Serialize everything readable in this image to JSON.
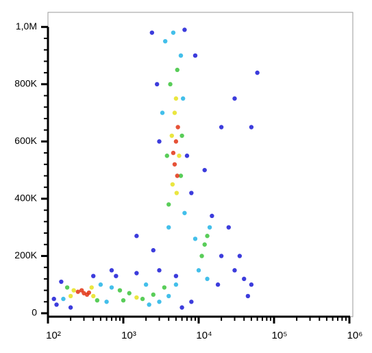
{
  "chart_data": {
    "type": "scatter",
    "log_x": true,
    "frame": true,
    "xlim": [
      100,
      1110000
    ],
    "ylim": [
      -12000,
      1051000
    ],
    "xticks": [
      {
        "value": 100,
        "label": "10²"
      },
      {
        "value": 1000,
        "label": "10³"
      },
      {
        "value": 10000,
        "label": "10⁴"
      },
      {
        "value": 100000,
        "label": "10⁵"
      },
      {
        "value": 1000000,
        "label": "10⁶"
      }
    ],
    "xminorticks": [
      200,
      300,
      400,
      500,
      600,
      700,
      800,
      900,
      2000,
      3000,
      4000,
      5000,
      6000,
      7000,
      8000,
      9000,
      20000,
      30000,
      40000,
      50000,
      60000,
      70000,
      80000,
      90000,
      200000,
      300000,
      400000,
      500000,
      600000,
      700000,
      800000,
      900000
    ],
    "yticks": [
      0,
      {
        "value": 200000,
        "label": "200K"
      },
      {
        "value": 400000,
        "label": "400K"
      },
      {
        "value": 600000,
        "label": "600K"
      },
      {
        "value": 800000,
        "label": "800K"
      },
      {
        "value": 1000000,
        "label": "1,0M"
      }
    ],
    "yminorticks": [
      40000,
      80000,
      120000,
      160000,
      240000,
      280000,
      320000,
      360000,
      440000,
      480000,
      520000,
      560000,
      640000,
      680000,
      720000,
      760000,
      840000,
      880000,
      920000,
      960000
    ],
    "series": [
      {
        "color": "#1a1ad6",
        "x": [
          130,
          120,
          150,
          800,
          1500,
          3000,
          5000,
          20000,
          30000,
          40000,
          50000,
          25000,
          15000,
          2500,
          1500,
          8000,
          12000,
          20000,
          30000,
          60000,
          50000,
          2400,
          6500,
          3000,
          7000,
          2800,
          9000,
          200,
          6000,
          8000,
          45000,
          35000,
          18000,
          700,
          400
        ],
        "values": [
          30000,
          50000,
          110000,
          130000,
          140000,
          150000,
          130000,
          200000,
          150000,
          120000,
          100000,
          300000,
          340000,
          220000,
          270000,
          420000,
          500000,
          650000,
          750000,
          840000,
          650000,
          980000,
          990000,
          600000,
          550000,
          800000,
          900000,
          20000,
          20000,
          40000,
          60000,
          200000,
          100000,
          150000,
          130000
        ]
      },
      {
        "color": "#22b4e6",
        "x": [
          700,
          2000,
          3000,
          4000,
          600,
          160,
          500,
          10000,
          14000,
          9000,
          3600,
          5800,
          4000,
          6500,
          3300,
          6200,
          2200,
          5000,
          13000,
          4600
        ],
        "values": [
          90000,
          100000,
          40000,
          60000,
          40000,
          50000,
          100000,
          150000,
          300000,
          260000,
          950000,
          900000,
          300000,
          350000,
          700000,
          750000,
          30000,
          100000,
          120000,
          980000
        ]
      },
      {
        "color": "#3cc43c",
        "x": [
          1200,
          1800,
          2500,
          900,
          12000,
          11000,
          13000,
          4000,
          5800,
          4200,
          5200,
          3800,
          6000,
          180,
          450,
          3500,
          1000
        ],
        "values": [
          70000,
          50000,
          65000,
          80000,
          240000,
          200000,
          270000,
          380000,
          480000,
          800000,
          850000,
          550000,
          620000,
          90000,
          45000,
          90000,
          45000
        ]
      },
      {
        "color": "#e6e21e",
        "x": [
          220,
          400,
          380,
          4500,
          5500,
          4800,
          5100,
          4400,
          1500,
          200,
          5000
        ],
        "values": [
          80000,
          60000,
          90000,
          450000,
          550000,
          700000,
          420000,
          620000,
          55000,
          60000,
          750000
        ]
      },
      {
        "color": "#e23414",
        "x": [
          300,
          280,
          330,
          4800,
          5200,
          5000,
          4600,
          5300,
          250,
          350
        ],
        "values": [
          70000,
          80000,
          65000,
          520000,
          480000,
          600000,
          560000,
          650000,
          75000,
          72000
        ]
      }
    ]
  }
}
